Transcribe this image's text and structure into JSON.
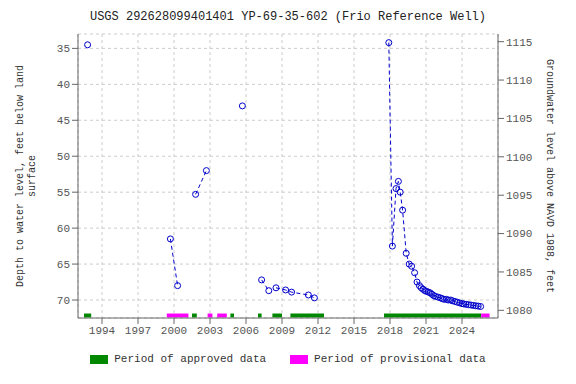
{
  "chart_data": {
    "type": "line",
    "title": "USGS 292628099401401 YP-69-35-602 (Frio Reference Well)",
    "ylabel": "Depth to water level, feet below land\nsurface",
    "y2label": "Groundwater level above NAVD 1988, feet",
    "xlim": [
      1992.0,
      2027.0
    ],
    "xticks": [
      1994,
      1997,
      2000,
      2003,
      2006,
      2009,
      2012,
      2015,
      2018,
      2021,
      2024
    ],
    "ylim": [
      72.5,
      33.0
    ],
    "yticks": [
      35,
      40,
      45,
      50,
      55,
      60,
      65,
      70
    ],
    "y2lim": [
      1079.0,
      1116.0
    ],
    "y2ticks": [
      1080,
      1085,
      1090,
      1095,
      1100,
      1105,
      1110,
      1115
    ],
    "grid": true,
    "legend": "bottom",
    "color": "#0000cc",
    "marker": "circle",
    "line_style": "dashed",
    "clusters": [
      {
        "x": [
          1992.8
        ],
        "y": [
          34.5
        ]
      },
      {
        "x": [
          1999.7,
          2000.3
        ],
        "y": [
          61.5,
          68.0
        ]
      },
      {
        "x": [
          2001.8,
          2002.7
        ],
        "y": [
          55.3,
          52.0
        ]
      },
      {
        "x": [
          2005.7
        ],
        "y": [
          43.0
        ]
      },
      {
        "x": [
          2007.3,
          2007.9
        ],
        "y": [
          67.2,
          68.7
        ]
      },
      {
        "x": [
          2008.5,
          2009.3,
          2009.8,
          2011.2,
          2011.7
        ],
        "y": [
          68.3,
          68.6,
          68.9,
          69.3,
          69.7
        ]
      },
      {
        "x": [
          2017.9,
          2018.2,
          2018.5,
          2018.7,
          2018.85,
          2019.05,
          2019.35,
          2019.6,
          2019.8,
          2020.05,
          2020.25,
          2020.45,
          2020.6,
          2020.75,
          2020.9,
          2021.05,
          2021.2,
          2021.35,
          2021.5,
          2021.65,
          2021.8,
          2022.0,
          2022.2,
          2022.35,
          2022.5,
          2022.7,
          2022.85,
          2023.05,
          2023.2,
          2023.4,
          2023.6,
          2023.8,
          2024.0,
          2024.15,
          2024.35,
          2024.55,
          2024.75,
          2024.95,
          2025.15,
          2025.35,
          2025.55
        ],
        "y": [
          34.2,
          62.5,
          54.5,
          53.5,
          55.0,
          57.5,
          63.5,
          65.0,
          65.3,
          66.2,
          67.5,
          68.0,
          68.3,
          68.5,
          68.7,
          68.8,
          68.9,
          69.0,
          69.2,
          69.4,
          69.5,
          69.6,
          69.7,
          69.8,
          69.9,
          69.9,
          70.0,
          70.0,
          70.1,
          70.2,
          70.3,
          70.4,
          70.5,
          70.55,
          70.6,
          70.65,
          70.7,
          70.75,
          70.8,
          70.85,
          70.9
        ]
      }
    ],
    "periods": [
      {
        "name": "Period of approved data",
        "color": "#008800",
        "ranges": [
          [
            1992.5,
            1993.1
          ],
          [
            2001.5,
            2001.9
          ],
          [
            2004.7,
            2005.0
          ],
          [
            2007.0,
            2007.3
          ],
          [
            2008.2,
            2009.0
          ],
          [
            2009.7,
            2012.5
          ],
          [
            2017.5,
            2025.6
          ]
        ]
      },
      {
        "name": "Period of provisional data",
        "color": "#ff00ff",
        "ranges": [
          [
            1999.4,
            2001.2
          ],
          [
            2002.8,
            2003.2
          ],
          [
            2003.6,
            2004.4
          ],
          [
            2025.6,
            2026.3
          ]
        ]
      }
    ],
    "bar_y": 72.15,
    "bar_height": 0.55
  }
}
